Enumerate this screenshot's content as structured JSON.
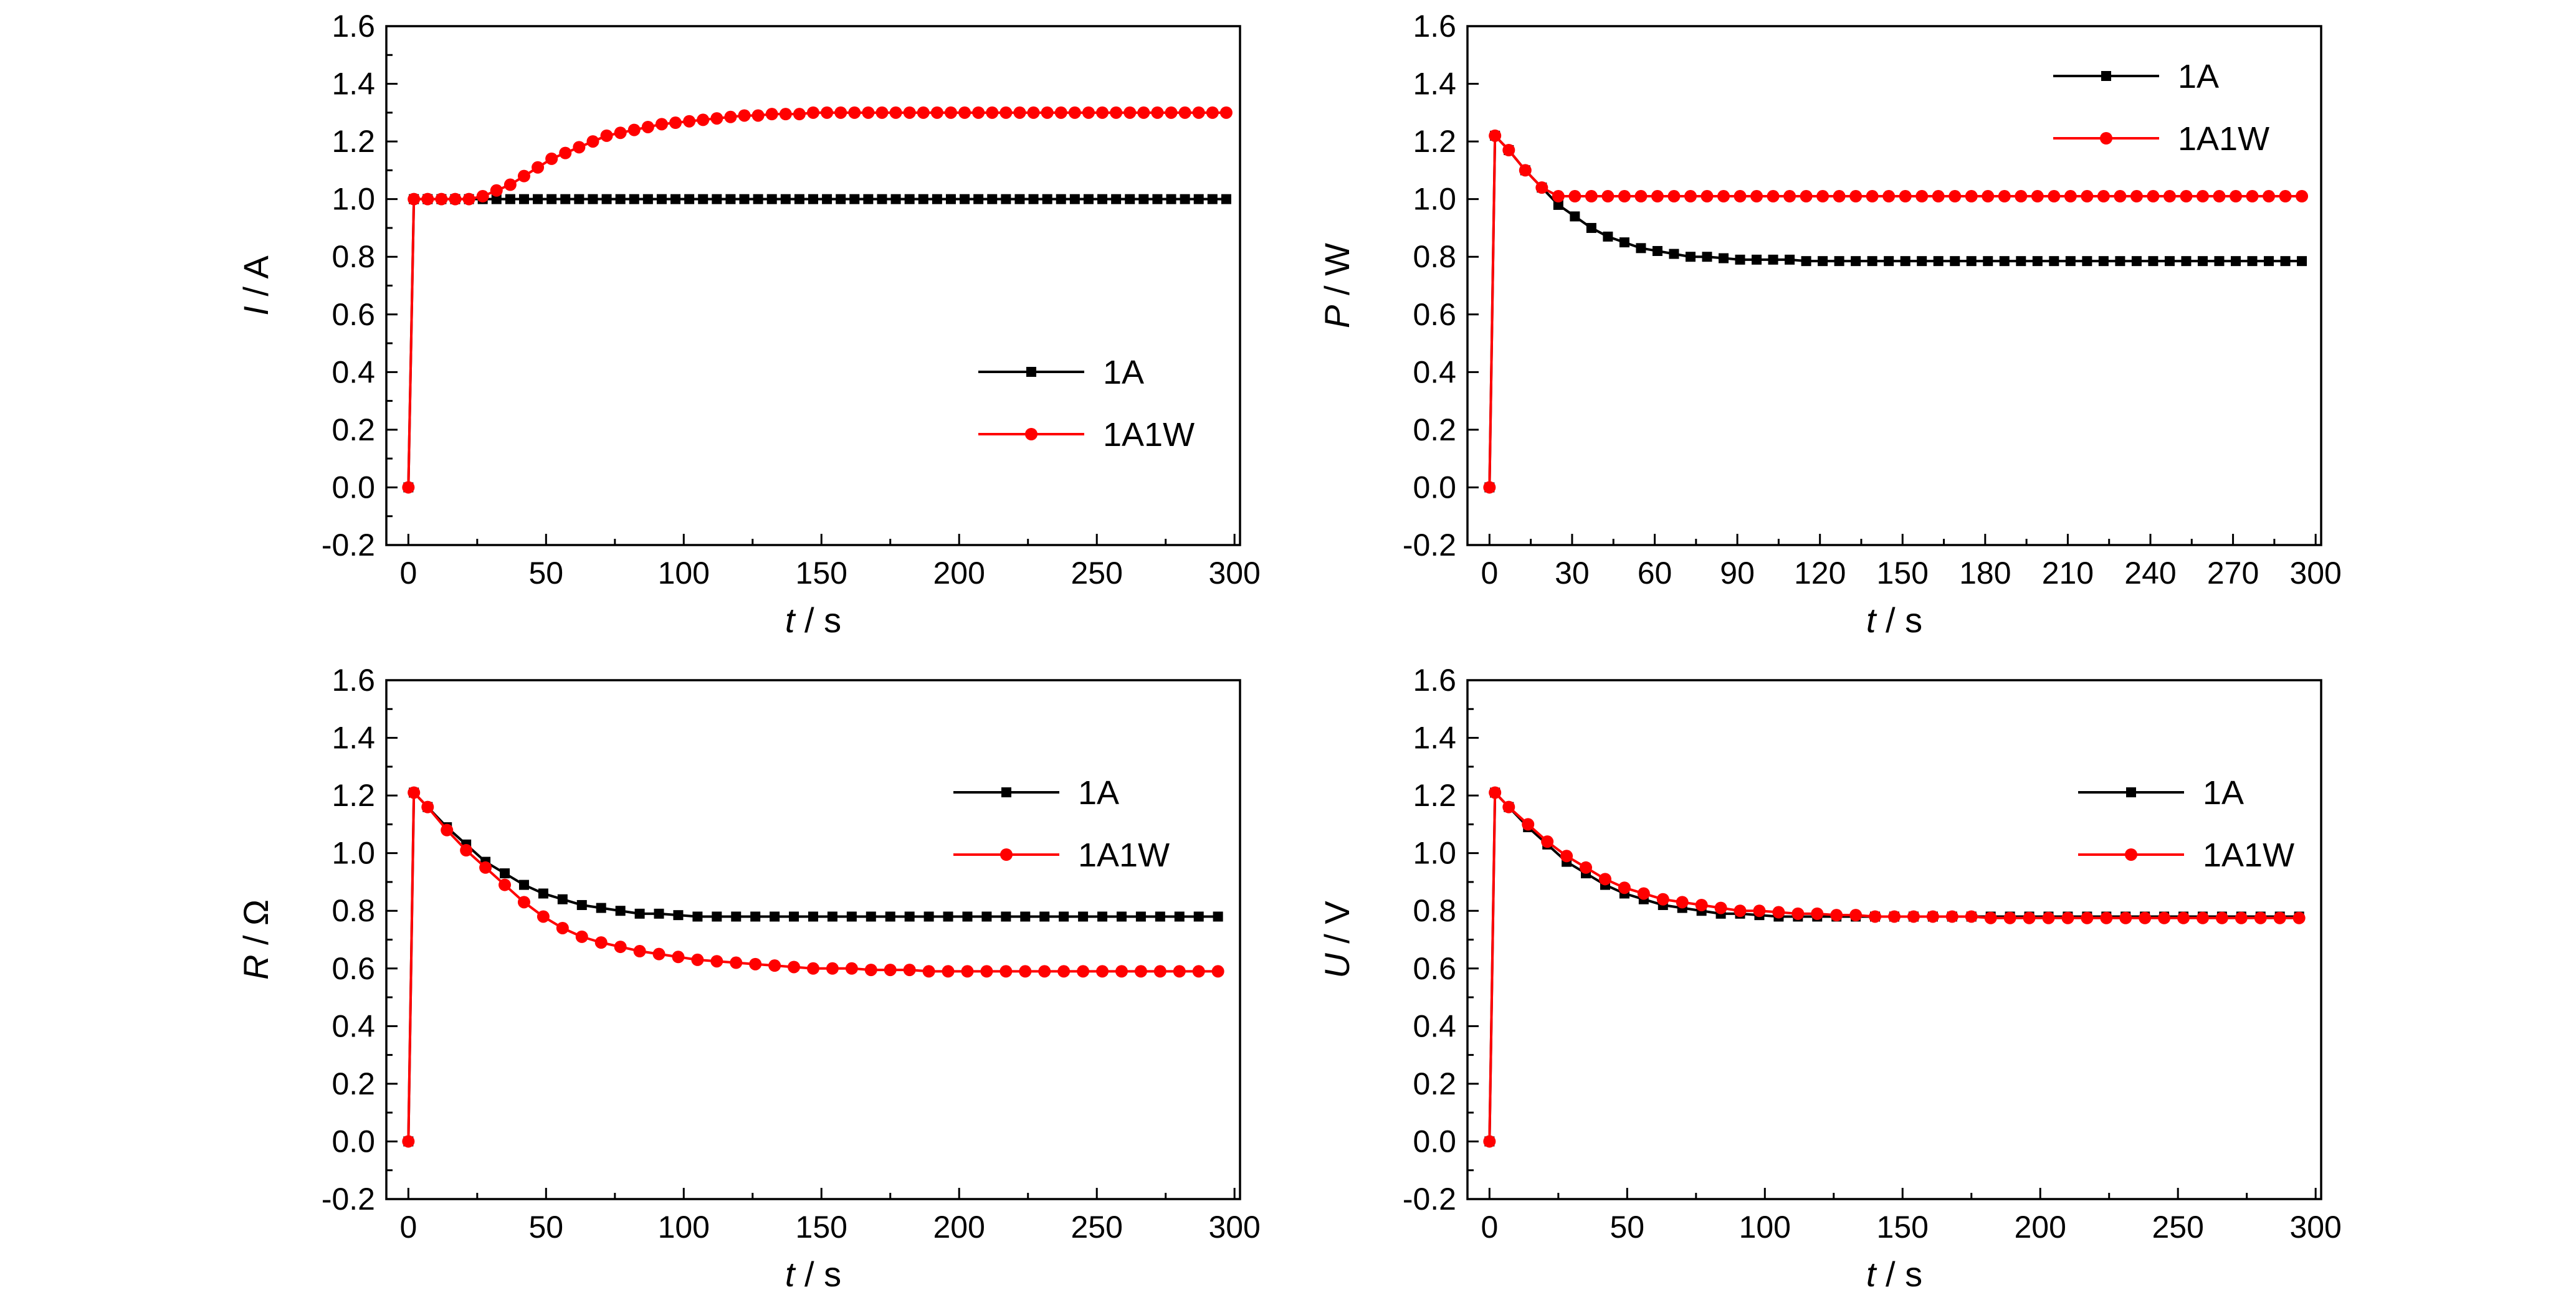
{
  "chart_data": [
    {
      "type": "line",
      "xlabel_var": "t",
      "xlabel_unit": " / s",
      "ylabel_var": "I",
      "ylabel_unit": " / A",
      "xlim": [
        -8,
        302
      ],
      "ylim": [
        -0.2,
        1.6
      ],
      "xticks": [
        0,
        50,
        100,
        150,
        200,
        250,
        300
      ],
      "yticks": [
        -0.2,
        0.0,
        0.2,
        0.4,
        0.6,
        0.8,
        1.0,
        1.2,
        1.4,
        1.6
      ],
      "yminor": true,
      "legend": "bottom-right",
      "series": [
        {
          "name": "1A",
          "color": "#000000",
          "marker": "square",
          "x": [
            0,
            2,
            7,
            12,
            17,
            22,
            27,
            32,
            37,
            42,
            47,
            52,
            57,
            62,
            67,
            72,
            77,
            82,
            87,
            92,
            97,
            102,
            107,
            112,
            117,
            122,
            127,
            132,
            137,
            142,
            147,
            152,
            157,
            162,
            167,
            172,
            177,
            182,
            187,
            192,
            197,
            202,
            207,
            212,
            217,
            222,
            227,
            232,
            237,
            242,
            247,
            252,
            257,
            262,
            267,
            272,
            277,
            282,
            287,
            292,
            297
          ],
          "y": [
            0.0,
            1.0,
            1.0,
            1.0,
            1.0,
            1.0,
            1.0,
            1.0,
            1.0,
            1.0,
            1.0,
            1.0,
            1.0,
            1.0,
            1.0,
            1.0,
            1.0,
            1.0,
            1.0,
            1.0,
            1.0,
            1.0,
            1.0,
            1.0,
            1.0,
            1.0,
            1.0,
            1.0,
            1.0,
            1.0,
            1.0,
            1.0,
            1.0,
            1.0,
            1.0,
            1.0,
            1.0,
            1.0,
            1.0,
            1.0,
            1.0,
            1.0,
            1.0,
            1.0,
            1.0,
            1.0,
            1.0,
            1.0,
            1.0,
            1.0,
            1.0,
            1.0,
            1.0,
            1.0,
            1.0,
            1.0,
            1.0,
            1.0,
            1.0,
            1.0,
            1.0
          ]
        },
        {
          "name": "1A1W",
          "color": "#ff0000",
          "marker": "circle",
          "x": [
            0,
            2,
            7,
            12,
            17,
            22,
            27,
            32,
            37,
            42,
            47,
            52,
            57,
            62,
            67,
            72,
            77,
            82,
            87,
            92,
            97,
            102,
            107,
            112,
            117,
            122,
            127,
            132,
            137,
            142,
            147,
            152,
            157,
            162,
            167,
            172,
            177,
            182,
            187,
            192,
            197,
            202,
            207,
            212,
            217,
            222,
            227,
            232,
            237,
            242,
            247,
            252,
            257,
            262,
            267,
            272,
            277,
            282,
            287,
            292,
            297
          ],
          "y": [
            0.0,
            1.0,
            1.0,
            1.0,
            1.0,
            1.0,
            1.01,
            1.03,
            1.05,
            1.08,
            1.11,
            1.14,
            1.16,
            1.18,
            1.2,
            1.22,
            1.23,
            1.24,
            1.25,
            1.26,
            1.265,
            1.27,
            1.275,
            1.28,
            1.285,
            1.29,
            1.29,
            1.295,
            1.295,
            1.295,
            1.3,
            1.3,
            1.3,
            1.3,
            1.3,
            1.3,
            1.3,
            1.3,
            1.3,
            1.3,
            1.3,
            1.3,
            1.3,
            1.3,
            1.3,
            1.3,
            1.3,
            1.3,
            1.3,
            1.3,
            1.3,
            1.3,
            1.3,
            1.3,
            1.3,
            1.3,
            1.3,
            1.3,
            1.3,
            1.3,
            1.3
          ]
        }
      ]
    },
    {
      "type": "line",
      "xlabel_var": "t",
      "xlabel_unit": " / s",
      "ylabel_var": "P",
      "ylabel_unit": " / W",
      "xlim": [
        -8,
        302
      ],
      "ylim": [
        -0.2,
        1.6
      ],
      "xticks": [
        0,
        30,
        60,
        90,
        120,
        150,
        180,
        210,
        240,
        270,
        300
      ],
      "yticks": [
        -0.2,
        0.0,
        0.2,
        0.4,
        0.6,
        0.8,
        1.0,
        1.2,
        1.4,
        1.6
      ],
      "yminor": false,
      "legend": "top-right",
      "series": [
        {
          "name": "1A",
          "color": "#000000",
          "marker": "square",
          "x": [
            0,
            2,
            7,
            13,
            19,
            25,
            31,
            37,
            43,
            49,
            55,
            61,
            67,
            73,
            79,
            85,
            91,
            97,
            103,
            109,
            115,
            121,
            127,
            133,
            139,
            145,
            151,
            157,
            163,
            169,
            175,
            181,
            187,
            193,
            199,
            205,
            211,
            217,
            223,
            229,
            235,
            241,
            247,
            253,
            259,
            265,
            271,
            277,
            283,
            289,
            295
          ],
          "y": [
            0.0,
            1.22,
            1.17,
            1.1,
            1.04,
            0.98,
            0.94,
            0.9,
            0.87,
            0.85,
            0.83,
            0.82,
            0.81,
            0.8,
            0.8,
            0.795,
            0.79,
            0.79,
            0.79,
            0.79,
            0.785,
            0.785,
            0.785,
            0.785,
            0.785,
            0.785,
            0.785,
            0.785,
            0.785,
            0.785,
            0.785,
            0.785,
            0.785,
            0.785,
            0.785,
            0.785,
            0.785,
            0.785,
            0.785,
            0.785,
            0.785,
            0.785,
            0.785,
            0.785,
            0.785,
            0.785,
            0.785,
            0.785,
            0.785,
            0.785,
            0.785
          ]
        },
        {
          "name": "1A1W",
          "color": "#ff0000",
          "marker": "circle",
          "x": [
            0,
            2,
            7,
            13,
            19,
            25,
            31,
            37,
            43,
            49,
            55,
            61,
            67,
            73,
            79,
            85,
            91,
            97,
            103,
            109,
            115,
            121,
            127,
            133,
            139,
            145,
            151,
            157,
            163,
            169,
            175,
            181,
            187,
            193,
            199,
            205,
            211,
            217,
            223,
            229,
            235,
            241,
            247,
            253,
            259,
            265,
            271,
            277,
            283,
            289,
            295
          ],
          "y": [
            0.0,
            1.22,
            1.17,
            1.1,
            1.04,
            1.01,
            1.01,
            1.01,
            1.01,
            1.01,
            1.01,
            1.01,
            1.01,
            1.01,
            1.01,
            1.01,
            1.01,
            1.01,
            1.01,
            1.01,
            1.01,
            1.01,
            1.01,
            1.01,
            1.01,
            1.01,
            1.01,
            1.01,
            1.01,
            1.01,
            1.01,
            1.01,
            1.01,
            1.01,
            1.01,
            1.01,
            1.01,
            1.01,
            1.01,
            1.01,
            1.01,
            1.01,
            1.01,
            1.01,
            1.01,
            1.01,
            1.01,
            1.01,
            1.01,
            1.01,
            1.01
          ]
        }
      ]
    },
    {
      "type": "line",
      "xlabel_var": "t",
      "xlabel_unit": " / s",
      "ylabel_var": "R",
      "ylabel_unit": " / Ω",
      "xlim": [
        -8,
        302
      ],
      "ylim": [
        -0.2,
        1.6
      ],
      "xticks": [
        0,
        50,
        100,
        150,
        200,
        250,
        300
      ],
      "yticks": [
        -0.2,
        0.0,
        0.2,
        0.4,
        0.6,
        0.8,
        1.0,
        1.2,
        1.4,
        1.6
      ],
      "yminor": true,
      "legend": "top-right",
      "series": [
        {
          "name": "1A",
          "color": "#000000",
          "marker": "square",
          "x": [
            0,
            2,
            7,
            14,
            21,
            28,
            35,
            42,
            49,
            56,
            63,
            70,
            77,
            84,
            91,
            98,
            105,
            112,
            119,
            126,
            133,
            140,
            147,
            154,
            161,
            168,
            175,
            182,
            189,
            196,
            203,
            210,
            217,
            224,
            231,
            238,
            245,
            252,
            259,
            266,
            273,
            280,
            287,
            294
          ],
          "y": [
            0.0,
            1.21,
            1.16,
            1.09,
            1.03,
            0.97,
            0.93,
            0.89,
            0.86,
            0.84,
            0.82,
            0.81,
            0.8,
            0.79,
            0.79,
            0.785,
            0.78,
            0.78,
            0.78,
            0.78,
            0.78,
            0.78,
            0.78,
            0.78,
            0.78,
            0.78,
            0.78,
            0.78,
            0.78,
            0.78,
            0.78,
            0.78,
            0.78,
            0.78,
            0.78,
            0.78,
            0.78,
            0.78,
            0.78,
            0.78,
            0.78,
            0.78,
            0.78,
            0.78
          ]
        },
        {
          "name": "1A1W",
          "color": "#ff0000",
          "marker": "circle",
          "x": [
            0,
            2,
            7,
            14,
            21,
            28,
            35,
            42,
            49,
            56,
            63,
            70,
            77,
            84,
            91,
            98,
            105,
            112,
            119,
            126,
            133,
            140,
            147,
            154,
            161,
            168,
            175,
            182,
            189,
            196,
            203,
            210,
            217,
            224,
            231,
            238,
            245,
            252,
            259,
            266,
            273,
            280,
            287,
            294
          ],
          "y": [
            0.0,
            1.21,
            1.16,
            1.08,
            1.01,
            0.95,
            0.89,
            0.83,
            0.78,
            0.74,
            0.71,
            0.69,
            0.675,
            0.66,
            0.65,
            0.64,
            0.63,
            0.625,
            0.62,
            0.615,
            0.61,
            0.605,
            0.6,
            0.6,
            0.6,
            0.595,
            0.595,
            0.595,
            0.59,
            0.59,
            0.59,
            0.59,
            0.59,
            0.59,
            0.59,
            0.59,
            0.59,
            0.59,
            0.59,
            0.59,
            0.59,
            0.59,
            0.59,
            0.59
          ]
        }
      ]
    },
    {
      "type": "line",
      "xlabel_var": "t",
      "xlabel_unit": " / s",
      "ylabel_var": "U",
      "ylabel_unit": " / V",
      "xlim": [
        -8,
        302
      ],
      "ylim": [
        -0.2,
        1.6
      ],
      "xticks": [
        0,
        50,
        100,
        150,
        200,
        250,
        300
      ],
      "yticks": [
        -0.2,
        0.0,
        0.2,
        0.4,
        0.6,
        0.8,
        1.0,
        1.2,
        1.4,
        1.6
      ],
      "yminor": true,
      "legend": "top-right",
      "series": [
        {
          "name": "1A",
          "color": "#000000",
          "marker": "square",
          "x": [
            0,
            2,
            7,
            14,
            21,
            28,
            35,
            42,
            49,
            56,
            63,
            70,
            77,
            84,
            91,
            98,
            105,
            112,
            119,
            126,
            133,
            140,
            147,
            154,
            161,
            168,
            175,
            182,
            189,
            196,
            203,
            210,
            217,
            224,
            231,
            238,
            245,
            252,
            259,
            266,
            273,
            280,
            287,
            294
          ],
          "y": [
            0.0,
            1.21,
            1.16,
            1.09,
            1.03,
            0.97,
            0.93,
            0.89,
            0.86,
            0.84,
            0.82,
            0.81,
            0.8,
            0.79,
            0.79,
            0.785,
            0.78,
            0.78,
            0.78,
            0.78,
            0.78,
            0.78,
            0.78,
            0.78,
            0.78,
            0.78,
            0.78,
            0.78,
            0.78,
            0.78,
            0.78,
            0.78,
            0.78,
            0.78,
            0.78,
            0.78,
            0.78,
            0.78,
            0.78,
            0.78,
            0.78,
            0.78,
            0.78,
            0.78
          ]
        },
        {
          "name": "1A1W",
          "color": "#ff0000",
          "marker": "circle",
          "x": [
            0,
            2,
            7,
            14,
            21,
            28,
            35,
            42,
            49,
            56,
            63,
            70,
            77,
            84,
            91,
            98,
            105,
            112,
            119,
            126,
            133,
            140,
            147,
            154,
            161,
            168,
            175,
            182,
            189,
            196,
            203,
            210,
            217,
            224,
            231,
            238,
            245,
            252,
            259,
            266,
            273,
            280,
            287,
            294
          ],
          "y": [
            0.0,
            1.21,
            1.16,
            1.1,
            1.04,
            0.99,
            0.95,
            0.91,
            0.88,
            0.86,
            0.84,
            0.83,
            0.82,
            0.81,
            0.8,
            0.8,
            0.795,
            0.79,
            0.79,
            0.785,
            0.785,
            0.78,
            0.78,
            0.78,
            0.78,
            0.78,
            0.78,
            0.775,
            0.775,
            0.775,
            0.775,
            0.775,
            0.775,
            0.775,
            0.775,
            0.775,
            0.775,
            0.775,
            0.775,
            0.775,
            0.775,
            0.775,
            0.775,
            0.775
          ]
        }
      ]
    }
  ]
}
